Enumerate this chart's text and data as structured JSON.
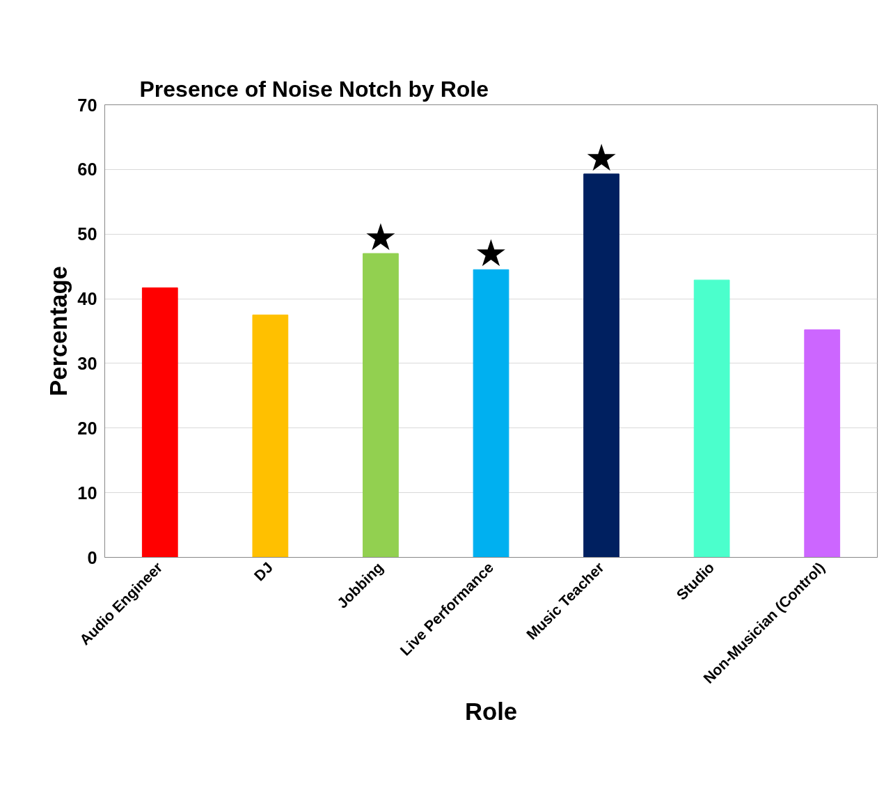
{
  "chart_data": {
    "type": "bar",
    "title": "Presence of Noise Notch by Role",
    "xlabel": "Role",
    "ylabel": "Percentage",
    "categories": [
      "Audio Engineer",
      "DJ",
      "Jobbing",
      "Live Performance",
      "Music Teacher",
      "Studio",
      "Non-Musician (Control)"
    ],
    "values": [
      41.7,
      37.5,
      47.0,
      44.5,
      59.3,
      42.9,
      35.2
    ],
    "colors": [
      "#ff0000",
      "#ffc000",
      "#92d050",
      "#00b0f0",
      "#002060",
      "#4bffcc",
      "#cc66ff"
    ],
    "ylim": [
      0,
      70
    ],
    "yticks": [
      0,
      10,
      20,
      30,
      40,
      50,
      60,
      70
    ],
    "grid": "y",
    "annotations": [
      {
        "text": "★",
        "x": "Jobbing",
        "y": 47.0
      },
      {
        "text": "★",
        "x": "Live Performance",
        "y": 44.5
      },
      {
        "text": "★",
        "x": "Music Teacher",
        "y": 59.3
      }
    ]
  }
}
